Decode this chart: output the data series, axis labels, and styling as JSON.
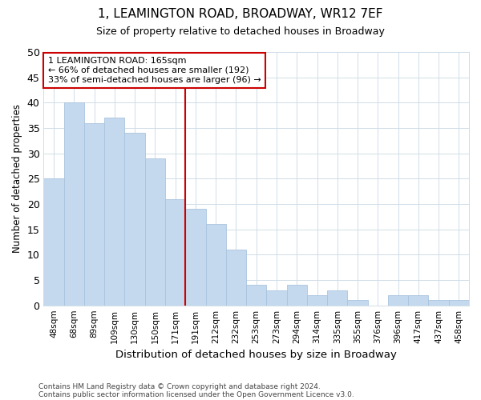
{
  "title": "1, LEAMINGTON ROAD, BROADWAY, WR12 7EF",
  "subtitle": "Size of property relative to detached houses in Broadway",
  "xlabel": "Distribution of detached houses by size in Broadway",
  "ylabel": "Number of detached properties",
  "categories": [
    "48sqm",
    "68sqm",
    "89sqm",
    "109sqm",
    "130sqm",
    "150sqm",
    "171sqm",
    "191sqm",
    "212sqm",
    "232sqm",
    "253sqm",
    "273sqm",
    "294sqm",
    "314sqm",
    "335sqm",
    "355sqm",
    "376sqm",
    "396sqm",
    "417sqm",
    "437sqm",
    "458sqm"
  ],
  "values": [
    25,
    40,
    36,
    37,
    34,
    29,
    21,
    19,
    16,
    11,
    4,
    3,
    4,
    2,
    3,
    1,
    0,
    2,
    2,
    1,
    1
  ],
  "bar_color": "#c5d9ee",
  "bar_edge_color": "#aac4df",
  "vline_x": 6.5,
  "vline_color": "#cc0000",
  "annotation_text": "1 LEAMINGTON ROAD: 165sqm\n← 66% of detached houses are smaller (192)\n33% of semi-detached houses are larger (96) →",
  "annotation_box_color": "#ffffff",
  "annotation_box_edge": "#cc0000",
  "ylim": [
    0,
    50
  ],
  "yticks": [
    0,
    5,
    10,
    15,
    20,
    25,
    30,
    35,
    40,
    45,
    50
  ],
  "footer1": "Contains HM Land Registry data © Crown copyright and database right 2024.",
  "footer2": "Contains public sector information licensed under the Open Government Licence v3.0.",
  "bg_color": "#ffffff",
  "plot_bg_color": "#ffffff",
  "grid_color": "#d0dde8"
}
